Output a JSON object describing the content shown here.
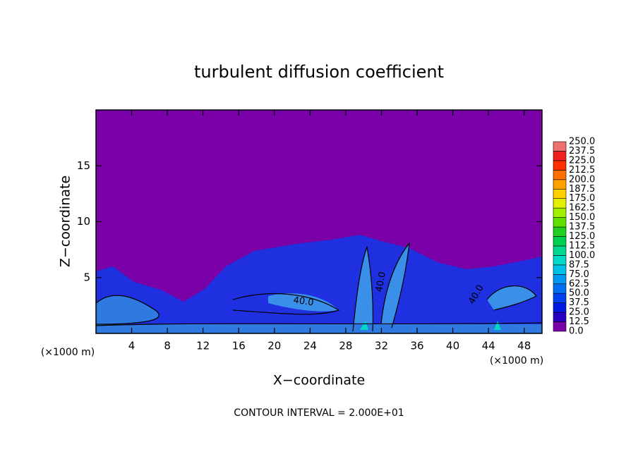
{
  "chart_data": {
    "type": "contour",
    "title": "turbulent diffusion coefficient",
    "xlabel": "X−coordinate",
    "ylabel": "Z−coordinate",
    "x_unit_label": "(×1000 m)",
    "footer": "CONTOUR INTERVAL = 2.000E+01",
    "xlim": [
      0,
      50
    ],
    "ylim": [
      0,
      20
    ],
    "xticks": [
      4,
      8,
      12,
      16,
      20,
      24,
      28,
      32,
      36,
      40,
      44,
      48
    ],
    "yticks": [
      5,
      10,
      15
    ],
    "contour_labels": [
      {
        "value": 40,
        "label": "40.0"
      },
      {
        "value": 40,
        "label": "40.0"
      },
      {
        "value": 40,
        "label": "40.0"
      }
    ],
    "colorbar": {
      "ticks": [
        {
          "value": 0,
          "label": "0.0"
        },
        {
          "value": 12.5,
          "label": "12.5"
        },
        {
          "value": 25,
          "label": "25.0"
        },
        {
          "value": 37.5,
          "label": "37.5"
        },
        {
          "value": 50,
          "label": "50.0"
        },
        {
          "value": 62.5,
          "label": "62.5"
        },
        {
          "value": 75,
          "label": "75.0"
        },
        {
          "value": 87.5,
          "label": "87.5"
        },
        {
          "value": 100,
          "label": "100.0"
        },
        {
          "value": 112.5,
          "label": "112.5"
        },
        {
          "value": 125,
          "label": "125.0"
        },
        {
          "value": 137.5,
          "label": "137.5"
        },
        {
          "value": 150,
          "label": "150.0"
        },
        {
          "value": 162.5,
          "label": "162.5"
        },
        {
          "value": 175,
          "label": "175.0"
        },
        {
          "value": 187.5,
          "label": "187.5"
        },
        {
          "value": 200,
          "label": "200.0"
        },
        {
          "value": 212.5,
          "label": "212.5"
        },
        {
          "value": 225,
          "label": "225.0"
        },
        {
          "value": 237.5,
          "label": "237.5"
        },
        {
          "value": 250,
          "label": "250.0"
        }
      ],
      "colors": [
        "#7a00a8",
        "#2a00c0",
        "#0018e0",
        "#0040f0",
        "#0070f0",
        "#0098f0",
        "#00c0e8",
        "#00d8c8",
        "#00d890",
        "#00d050",
        "#20d020",
        "#60e000",
        "#a0f000",
        "#e0f000",
        "#ffd000",
        "#ffa000",
        "#ff7000",
        "#ff3000",
        "#f02020",
        "#f07070"
      ]
    }
  }
}
